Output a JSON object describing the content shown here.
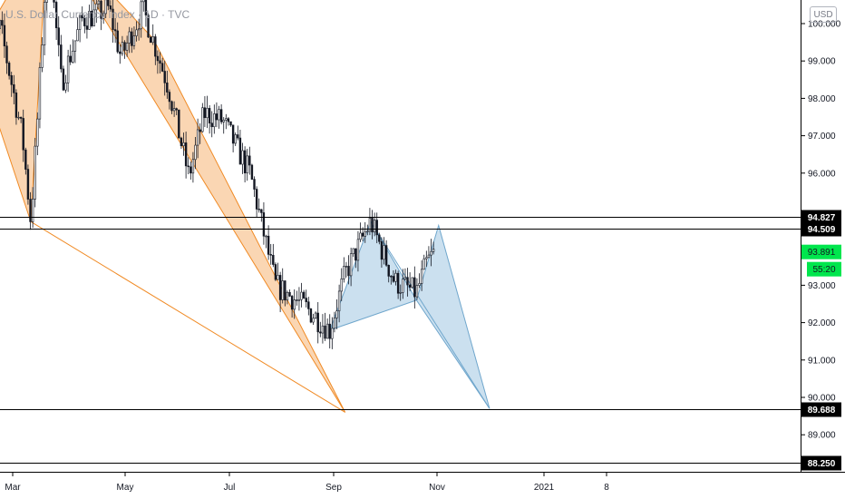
{
  "header": {
    "title": "U.S. Dollar Currency Index · 1D · TVC",
    "currency_button": "USD"
  },
  "colors": {
    "candle": "#131722",
    "pattern_orange_fill": "#f8c89a",
    "pattern_orange_stroke": "#f08a24",
    "pattern_blue_fill": "#b9d6ea",
    "pattern_blue_stroke": "#6fa6cc",
    "level_line": "#000000",
    "price_badge": "#00e64d"
  },
  "chart_data": {
    "type": "candlestick",
    "title": "U.S. Dollar Currency Index",
    "ylim": [
      87.9,
      101.1
    ],
    "y_ticks": [
      "100.000",
      "99.000",
      "98.000",
      "97.000",
      "96.000",
      "93.000",
      "92.000",
      "91.000",
      "90.000",
      "89.000"
    ],
    "x_ticks": [
      "Mar",
      "May",
      "Jul",
      "Sep",
      "Nov",
      "2021",
      "8"
    ],
    "price_series": [
      {
        "x": "2020-02-10",
        "close": 98.9
      },
      {
        "x": "2020-02-20",
        "close": 99.9
      },
      {
        "x": "2020-03-04",
        "close": 97.0
      },
      {
        "x": "2020-03-09",
        "close": 94.7
      },
      {
        "x": "2020-03-13",
        "close": 97.5
      },
      {
        "x": "2020-03-19",
        "close": 102.2
      },
      {
        "x": "2020-03-27",
        "close": 98.4
      },
      {
        "x": "2020-04-08",
        "close": 100.1
      },
      {
        "x": "2020-04-24",
        "close": 100.4
      },
      {
        "x": "2020-05-01",
        "close": 99.1
      },
      {
        "x": "2020-05-14",
        "close": 100.4
      },
      {
        "x": "2020-05-29",
        "close": 98.3
      },
      {
        "x": "2020-06-10",
        "close": 95.9
      },
      {
        "x": "2020-06-19",
        "close": 97.6
      },
      {
        "x": "2020-06-30",
        "close": 97.4
      },
      {
        "x": "2020-07-16",
        "close": 96.0
      },
      {
        "x": "2020-07-31",
        "close": 93.0
      },
      {
        "x": "2020-08-18",
        "close": 92.4
      },
      {
        "x": "2020-09-01",
        "close": 91.8
      },
      {
        "x": "2020-09-10",
        "close": 93.3
      },
      {
        "x": "2020-09-25",
        "close": 94.7
      },
      {
        "x": "2020-10-09",
        "close": 93.1
      },
      {
        "x": "2020-10-22",
        "close": 92.8
      },
      {
        "x": "2020-10-28",
        "close": 93.6
      },
      {
        "x": "2020-11-02",
        "close": 93.9
      }
    ],
    "patterns": [
      {
        "name": "orange-harmonic-pattern",
        "points": [
          {
            "x": "2020-02-05",
            "y": 99.2
          },
          {
            "x": "2020-03-09",
            "y": 94.7
          },
          {
            "x": "2020-03-19",
            "y": 102.6
          },
          {
            "x": "2020-05-20",
            "y": 99.6
          },
          {
            "x": "2020-09-10",
            "y": 89.6
          }
        ]
      },
      {
        "name": "blue-harmonic-pattern",
        "points": [
          {
            "x": "2020-09-01",
            "y": 91.8
          },
          {
            "x": "2020-09-25",
            "y": 94.7
          },
          {
            "x": "2020-10-22",
            "y": 92.6
          },
          {
            "x": "2020-11-04",
            "y": 94.6
          },
          {
            "x": "2020-12-04",
            "y": 89.7
          }
        ]
      }
    ],
    "levels": [
      {
        "value": 94.827,
        "label": "94.827"
      },
      {
        "value": 94.509,
        "label": "94.509"
      },
      {
        "value": 89.688,
        "label": "89.688"
      },
      {
        "value": 88.25,
        "label": "88.250"
      }
    ],
    "current_price": {
      "value": 93.891,
      "label": "93.891",
      "countdown": "55:20"
    }
  }
}
